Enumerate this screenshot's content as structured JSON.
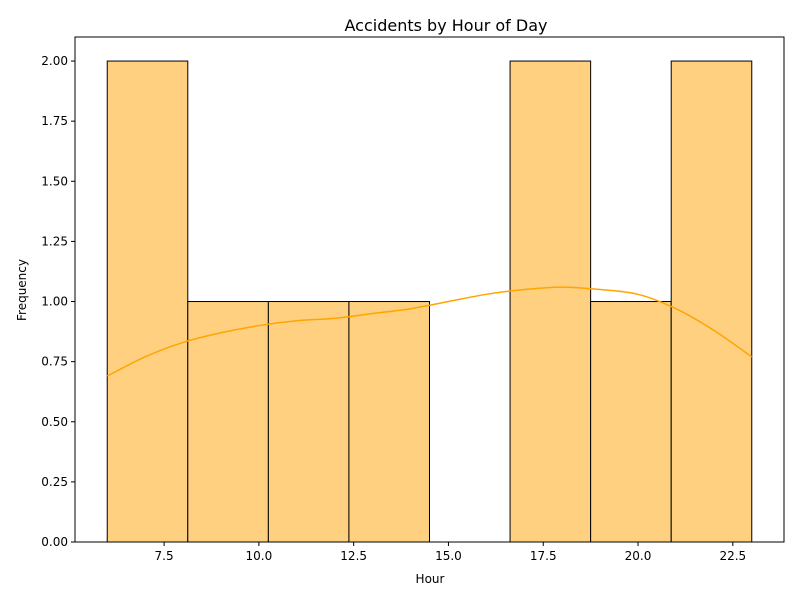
{
  "chart_data": {
    "type": "bar",
    "title": "Accidents by Hour of Day",
    "xlabel": "Hour",
    "ylabel": "Frequency",
    "bin_edges": [
      6.0,
      8.125,
      10.25,
      12.375,
      14.5,
      16.625,
      18.75,
      20.875,
      23.0
    ],
    "values": [
      2,
      1,
      1,
      1,
      0,
      2,
      1,
      2
    ],
    "xlim": [
      5.15,
      23.85
    ],
    "ylim": [
      0,
      2.1
    ],
    "xticks": [
      7.5,
      10.0,
      12.5,
      15.0,
      17.5,
      20.0,
      22.5
    ],
    "xtick_labels": [
      "7.5",
      "10.0",
      "12.5",
      "15.0",
      "17.5",
      "20.0",
      "22.5"
    ],
    "yticks": [
      0,
      0.25,
      0.5,
      0.75,
      1.0,
      1.25,
      1.5,
      1.75,
      2.0
    ],
    "ytick_labels": [
      "0.00",
      "0.25",
      "0.50",
      "0.75",
      "1.00",
      "1.25",
      "1.50",
      "1.75",
      "2.00"
    ],
    "kde": {
      "x": [
        6.0,
        7.0,
        8.0,
        9.0,
        10.0,
        11.0,
        12.0,
        13.0,
        14.0,
        15.0,
        16.0,
        17.0,
        18.0,
        19.0,
        20.0,
        21.0,
        22.0,
        23.0
      ],
      "y": [
        0.69,
        0.77,
        0.83,
        0.87,
        0.9,
        0.92,
        0.93,
        0.95,
        0.97,
        1.0,
        1.03,
        1.05,
        1.06,
        1.05,
        1.03,
        0.97,
        0.88,
        0.77
      ]
    },
    "grid": false,
    "colors": {
      "bar_fill": "#ffd080",
      "bar_edge": "#000000",
      "kde_line": "#ffa500"
    }
  }
}
